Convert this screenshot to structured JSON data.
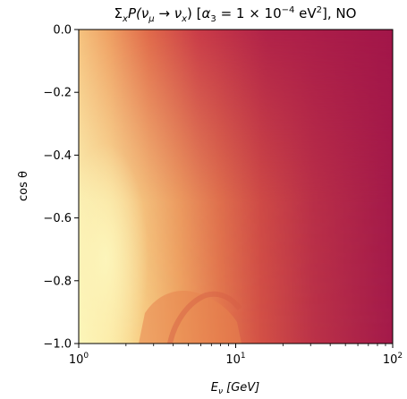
{
  "chart_data": {
    "type": "heatmap",
    "title": {
      "prefix": "Σ",
      "sum_index": "x",
      "P_open": "P(",
      "nu1": "ν",
      "nu1_sub": "μ",
      "arrow": " → ",
      "nu2": "ν",
      "nu2_sub": "x",
      "P_close": ") [",
      "alpha": "α",
      "alpha_sub": "3",
      "eq": " = 1 × 10",
      "exp": "−4",
      "unit": " eV",
      "unit_exp": "2",
      "tail": "], NO"
    },
    "xlabel": {
      "symbol": "E",
      "sub": "ν",
      "unit": " [GeV]"
    },
    "ylabel": "cos θ",
    "x_scale": "log",
    "xlim": [
      1,
      100
    ],
    "ylim": [
      -1.0,
      0.0
    ],
    "x_ticks": [
      {
        "value": 1,
        "base": "10",
        "exp": "0"
      },
      {
        "value": 10,
        "base": "10",
        "exp": "1"
      },
      {
        "value": 100,
        "base": "10",
        "exp": "2"
      }
    ],
    "y_ticks": [
      {
        "value": 0.0,
        "label": "0.0"
      },
      {
        "value": -0.2,
        "label": "−0.2"
      },
      {
        "value": -0.4,
        "label": "−0.4"
      },
      {
        "value": -0.6,
        "label": "−0.6"
      },
      {
        "value": -0.8,
        "label": "−0.8"
      },
      {
        "value": -1.0,
        "label": "−1.0"
      }
    ],
    "grid": false,
    "colormap": [
      "#fcf5b4",
      "#f7c984",
      "#f09d5f",
      "#e06048",
      "#c83c4e",
      "#a41a49"
    ]
  }
}
